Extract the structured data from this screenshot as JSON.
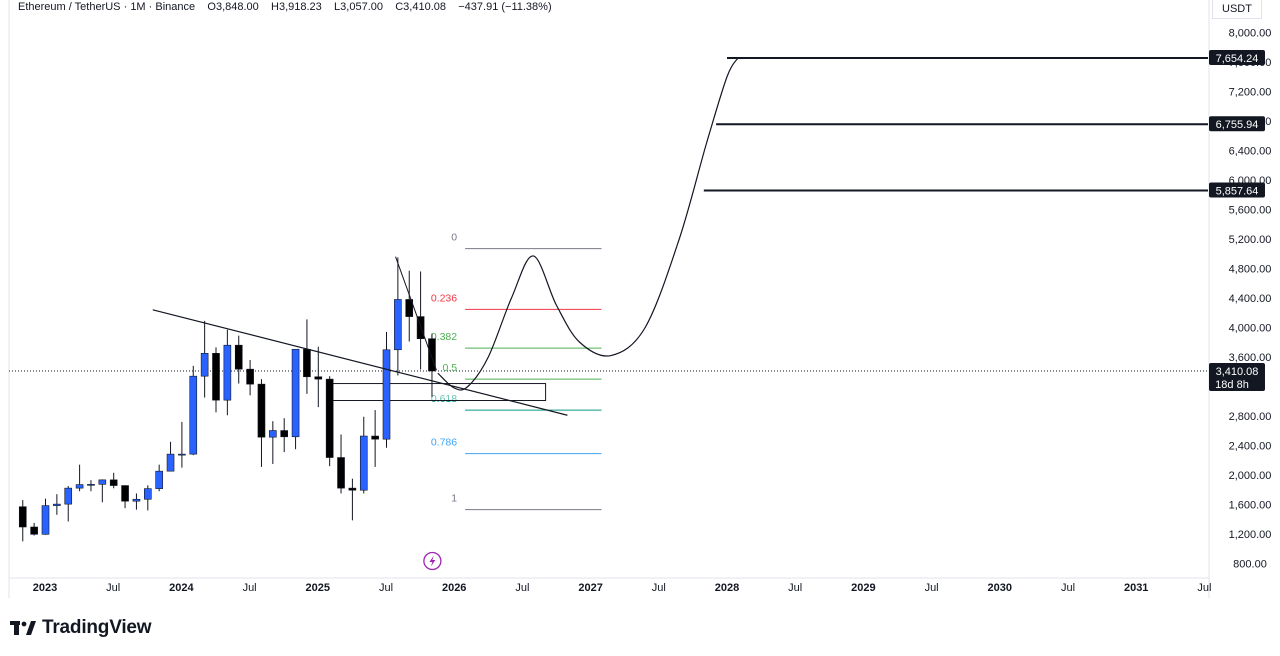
{
  "header": {
    "symbol": "Ethereum / TetherUS",
    "interval": "1M",
    "exchange": "Binance",
    "open": "O3,848.00",
    "high": "H3,918.23",
    "low": "L3,057.00",
    "close": "C3,410.08",
    "change": "−437.91 (−11.38%)",
    "currency": "USDT"
  },
  "colors": {
    "up": "#2962ff",
    "down": "#000000",
    "fib_0": "#787b86",
    "fib_0236": "#f23645",
    "fib_0382": "#4caf50",
    "fib_05": "#4caf50",
    "fib_0618": "#089981",
    "fib_0786": "#42a5f5",
    "fib_1": "#787b86"
  },
  "chart_data": {
    "type": "candlestick",
    "interval": "1M",
    "y_ticks": [
      "8,000.00",
      "7,600.00",
      "7,200.00",
      "6,800.00",
      "6,400.00",
      "6,000.00",
      "5,600.00",
      "5,200.00",
      "4,800.00",
      "4,400.00",
      "4,000.00",
      "3,600.00",
      "2,800.00",
      "2,400.00",
      "2,000.00",
      "1,600.00",
      "1,200.00",
      "800.00"
    ],
    "y_tick_values": [
      8000,
      7600,
      7200,
      6800,
      6400,
      6000,
      5600,
      5200,
      4800,
      4400,
      4000,
      3600,
      2800,
      2400,
      2000,
      1600,
      1200,
      800
    ],
    "x_ticks": [
      {
        "label": "2023",
        "t": 2023.0,
        "bold": true
      },
      {
        "label": "Jul",
        "t": 2023.5,
        "bold": false
      },
      {
        "label": "2024",
        "t": 2024.0,
        "bold": true
      },
      {
        "label": "Jul",
        "t": 2024.5,
        "bold": false
      },
      {
        "label": "2025",
        "t": 2025.0,
        "bold": true
      },
      {
        "label": "Jul",
        "t": 2025.5,
        "bold": false
      },
      {
        "label": "2026",
        "t": 2026.0,
        "bold": true
      },
      {
        "label": "Jul",
        "t": 2026.5,
        "bold": false
      },
      {
        "label": "2027",
        "t": 2027.0,
        "bold": true
      },
      {
        "label": "Jul",
        "t": 2027.5,
        "bold": false
      },
      {
        "label": "2028",
        "t": 2028.0,
        "bold": true
      },
      {
        "label": "Jul",
        "t": 2028.5,
        "bold": false
      },
      {
        "label": "2029",
        "t": 2029.0,
        "bold": true
      },
      {
        "label": "Jul",
        "t": 2029.5,
        "bold": false
      },
      {
        "label": "2030",
        "t": 2030.0,
        "bold": true
      },
      {
        "label": "Jul",
        "t": 2030.5,
        "bold": false
      },
      {
        "label": "2031",
        "t": 2031.0,
        "bold": true
      },
      {
        "label": "Jul",
        "t": 2031.5,
        "bold": false
      }
    ],
    "candles": [
      {
        "t": "2022-11",
        "o": 1570,
        "h": 1660,
        "l": 1100,
        "c": 1295
      },
      {
        "t": "2022-12",
        "o": 1295,
        "h": 1350,
        "l": 1180,
        "c": 1196
      },
      {
        "t": "2023-01",
        "o": 1196,
        "h": 1680,
        "l": 1190,
        "c": 1585
      },
      {
        "t": "2023-02",
        "o": 1585,
        "h": 1740,
        "l": 1460,
        "c": 1605
      },
      {
        "t": "2023-03",
        "o": 1605,
        "h": 1850,
        "l": 1370,
        "c": 1822
      },
      {
        "t": "2023-04",
        "o": 1822,
        "h": 2140,
        "l": 1780,
        "c": 1870
      },
      {
        "t": "2023-05",
        "o": 1870,
        "h": 1930,
        "l": 1780,
        "c": 1874
      },
      {
        "t": "2023-06",
        "o": 1874,
        "h": 1940,
        "l": 1630,
        "c": 1934
      },
      {
        "t": "2023-07",
        "o": 1934,
        "h": 2030,
        "l": 1820,
        "c": 1857
      },
      {
        "t": "2023-08",
        "o": 1857,
        "h": 1860,
        "l": 1550,
        "c": 1645
      },
      {
        "t": "2023-09",
        "o": 1645,
        "h": 1750,
        "l": 1530,
        "c": 1671
      },
      {
        "t": "2023-10",
        "o": 1671,
        "h": 1860,
        "l": 1520,
        "c": 1815
      },
      {
        "t": "2023-11",
        "o": 1815,
        "h": 2140,
        "l": 1780,
        "c": 2052
      },
      {
        "t": "2023-12",
        "o": 2052,
        "h": 2450,
        "l": 2050,
        "c": 2283
      },
      {
        "t": "2024-01",
        "o": 2283,
        "h": 2720,
        "l": 2100,
        "c": 2283
      },
      {
        "t": "2024-02",
        "o": 2283,
        "h": 3480,
        "l": 2270,
        "c": 3340
      },
      {
        "t": "2024-03",
        "o": 3340,
        "h": 4090,
        "l": 3050,
        "c": 3650
      },
      {
        "t": "2024-04",
        "o": 3650,
        "h": 3730,
        "l": 2850,
        "c": 3015
      },
      {
        "t": "2024-05",
        "o": 3015,
        "h": 3970,
        "l": 2810,
        "c": 3760
      },
      {
        "t": "2024-06",
        "o": 3760,
        "h": 3890,
        "l": 3240,
        "c": 3435
      },
      {
        "t": "2024-07",
        "o": 3435,
        "h": 3560,
        "l": 3080,
        "c": 3232
      },
      {
        "t": "2024-08",
        "o": 3232,
        "h": 3300,
        "l": 2110,
        "c": 2513
      },
      {
        "t": "2024-09",
        "o": 2513,
        "h": 2730,
        "l": 2150,
        "c": 2603
      },
      {
        "t": "2024-10",
        "o": 2603,
        "h": 2770,
        "l": 2310,
        "c": 2518
      },
      {
        "t": "2024-11",
        "o": 2518,
        "h": 3700,
        "l": 2350,
        "c": 3705
      },
      {
        "t": "2024-12",
        "o": 3705,
        "h": 4110,
        "l": 3100,
        "c": 3332
      },
      {
        "t": "2025-01",
        "o": 3332,
        "h": 3740,
        "l": 2920,
        "c": 3300
      },
      {
        "t": "2025-02",
        "o": 3300,
        "h": 3340,
        "l": 2120,
        "c": 2237
      },
      {
        "t": "2025-03",
        "o": 2237,
        "h": 2550,
        "l": 1750,
        "c": 1822
      },
      {
        "t": "2025-04",
        "o": 1822,
        "h": 1950,
        "l": 1385,
        "c": 1794
      },
      {
        "t": "2025-05",
        "o": 1794,
        "h": 2790,
        "l": 1750,
        "c": 2528
      },
      {
        "t": "2025-06",
        "o": 2528,
        "h": 2880,
        "l": 2110,
        "c": 2486
      },
      {
        "t": "2025-07",
        "o": 2486,
        "h": 3940,
        "l": 2370,
        "c": 3698
      },
      {
        "t": "2025-08",
        "o": 3698,
        "h": 4950,
        "l": 3350,
        "c": 4380
      },
      {
        "t": "2025-09",
        "o": 4380,
        "h": 4770,
        "l": 3810,
        "c": 4148
      },
      {
        "t": "2025-10",
        "o": 4148,
        "h": 4760,
        "l": 3430,
        "c": 3848
      },
      {
        "t": "2025-11",
        "o": 3848,
        "h": 3918,
        "l": 3057,
        "c": 3410
      }
    ],
    "fib_levels": [
      {
        "label": "0",
        "price": 5070,
        "color_key": "fib_0"
      },
      {
        "label": "0.236",
        "price": 4245,
        "color_key": "fib_0236"
      },
      {
        "label": "0.382",
        "price": 3720,
        "color_key": "fib_0382"
      },
      {
        "label": "0.5",
        "price": 3300,
        "color_key": "fib_05"
      },
      {
        "label": "0.618",
        "price": 2880,
        "color_key": "fib_0618"
      },
      {
        "label": "0.786",
        "price": 2290,
        "color_key": "fib_0786"
      },
      {
        "label": "1",
        "price": 1530,
        "color_key": "fib_1"
      }
    ],
    "horizontal_rays": [
      {
        "label": "7,654.24",
        "price": 7654.24,
        "start_t": 2028.0
      },
      {
        "label": "6,755.94",
        "price": 6755.94,
        "start_t": 2027.92
      },
      {
        "label": "5,857.64",
        "price": 5857.64,
        "start_t": 2027.83
      }
    ],
    "current_price": {
      "label": "3,410.08",
      "price": 3410.08,
      "countdown": "18d 8h"
    },
    "trendline": {
      "t1": 2023.79,
      "p1": 4240,
      "t2": 2026.83,
      "p2": 2810
    },
    "zone": {
      "t1": 2025.08,
      "t2": 2026.67,
      "p_top": 3240,
      "p_bottom": 3010
    },
    "projection_path": [
      {
        "t": 2025.88,
        "p": 3380
      },
      {
        "t": 2026.0,
        "p": 3180
      },
      {
        "t": 2026.1,
        "p": 3200
      },
      {
        "t": 2026.25,
        "p": 3600
      },
      {
        "t": 2026.42,
        "p": 4400
      },
      {
        "t": 2026.58,
        "p": 4970
      },
      {
        "t": 2026.75,
        "p": 4300
      },
      {
        "t": 2026.92,
        "p": 3800
      },
      {
        "t": 2027.15,
        "p": 3620
      },
      {
        "t": 2027.4,
        "p": 4000
      },
      {
        "t": 2027.65,
        "p": 5200
      },
      {
        "t": 2027.85,
        "p": 6500
      },
      {
        "t": 2028.0,
        "p": 7400
      },
      {
        "t": 2028.08,
        "p": 7654
      }
    ]
  },
  "brand": {
    "name": "TradingView"
  }
}
